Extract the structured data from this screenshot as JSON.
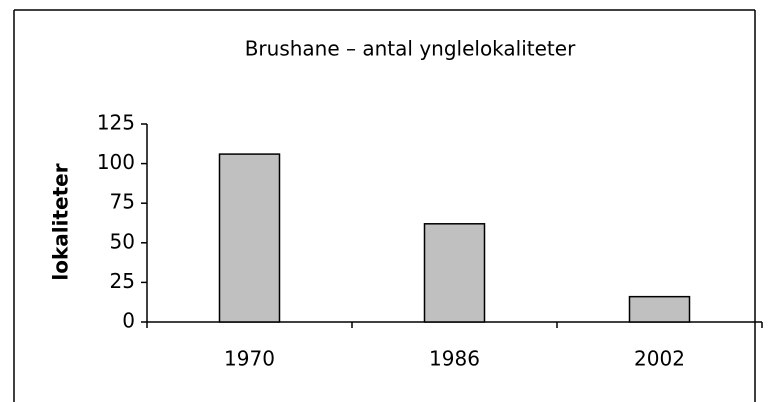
{
  "chart_data": {
    "type": "bar",
    "title": "Brushane – antal ynglelokaliteter",
    "y_label": "lokaliteter",
    "categories": [
      "1970",
      "1986",
      "2002"
    ],
    "values": [
      106,
      62,
      16
    ],
    "color": "#c0c0c0",
    "ylim": [
      0,
      125
    ],
    "yticks": [
      0,
      25,
      50,
      75,
      100,
      125
    ],
    "grid": false
  }
}
